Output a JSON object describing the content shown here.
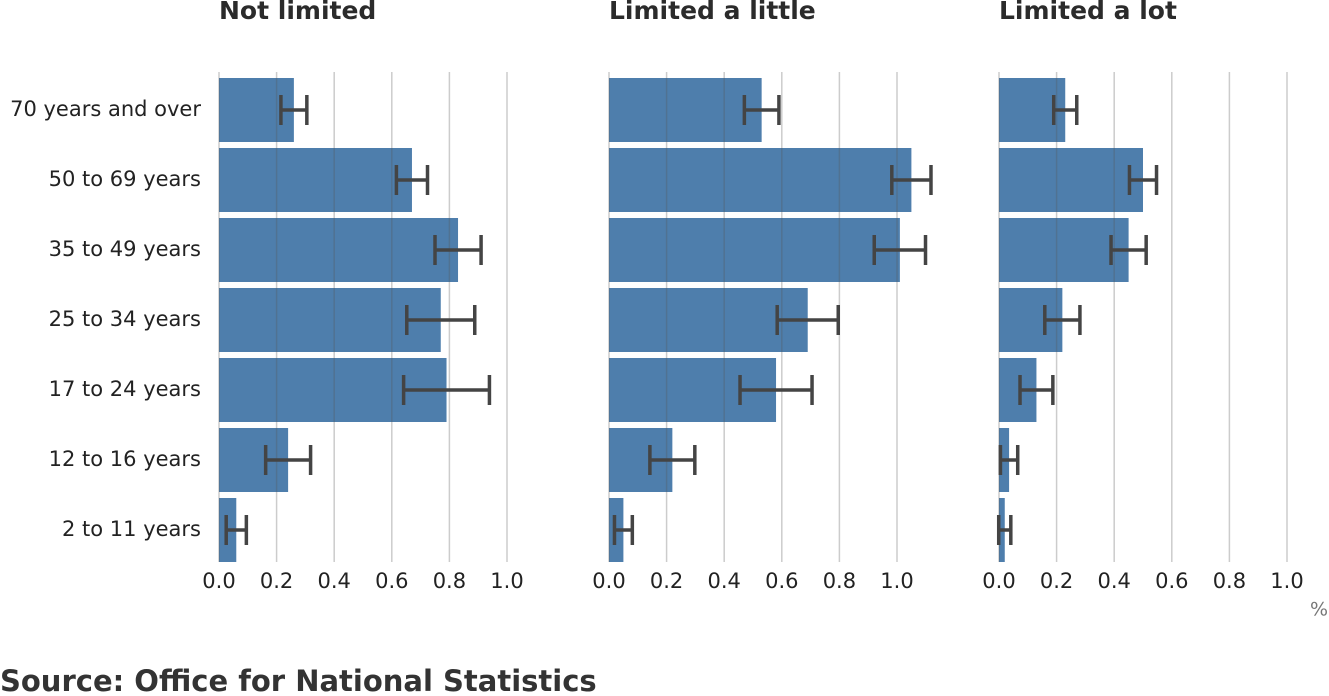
{
  "chart_data": [
    {
      "type": "bar",
      "title": "Not limited",
      "categories": [
        "70 years and over",
        "50 to 69 years",
        "35 to 49 years",
        "25 to 34 years",
        "17 to 24 years",
        "12 to 16 years",
        "2 to 11 years"
      ],
      "values": [
        0.26,
        0.67,
        0.83,
        0.77,
        0.79,
        0.24,
        0.06
      ],
      "errors": [
        0.045,
        0.054,
        0.08,
        0.118,
        0.149,
        0.078,
        0.035
      ],
      "color": "#4577a8",
      "xlim": [
        0,
        1.1
      ],
      "xticks": [
        {
          "value": 0,
          "label": "0.0"
        },
        0.2,
        0.4,
        0.6,
        0.8,
        {
          "value": 1,
          "label": "1.0"
        }
      ],
      "grid": true
    },
    {
      "type": "bar",
      "title": "Limited a little",
      "values": [
        0.53,
        1.05,
        1.01,
        0.69,
        0.58,
        0.22,
        0.05
      ],
      "errors": [
        0.06,
        0.068,
        0.089,
        0.106,
        0.125,
        0.078,
        0.031
      ],
      "color": "#4577a8",
      "xlim": [
        0,
        1.1
      ],
      "xticks": [
        {
          "value": 0,
          "label": "0.0"
        },
        0.2,
        0.4,
        0.6,
        0.8,
        {
          "value": 1,
          "label": "1.0"
        }
      ],
      "grid": true
    },
    {
      "type": "bar",
      "title": "Limited a lot",
      "values": [
        0.23,
        0.5,
        0.45,
        0.22,
        0.13,
        0.035,
        0.02
      ],
      "errors": [
        0.04,
        0.047,
        0.061,
        0.061,
        0.057,
        0.03,
        0.021
      ],
      "color": "#4577a8",
      "xlim": [
        0,
        1.1
      ],
      "xticks": [
        {
          "value": 0,
          "label": "0.0"
        },
        0.2,
        0.4,
        0.6,
        0.8,
        {
          "value": 1,
          "label": "1.0"
        }
      ],
      "grid": true
    }
  ],
  "unit": "%",
  "source": "Source: Office for National Statistics"
}
